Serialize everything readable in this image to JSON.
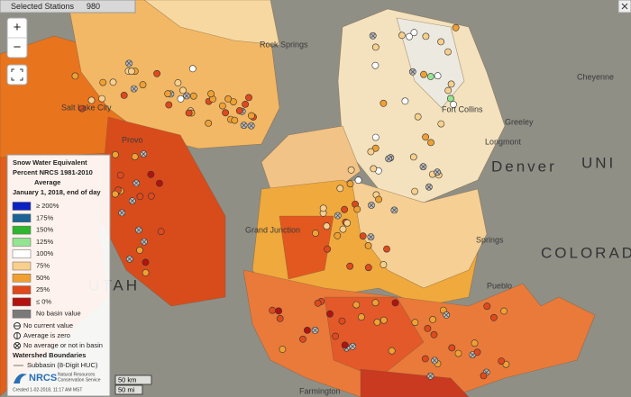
{
  "toolbar": {
    "label": "Selected Stations",
    "count": "980"
  },
  "controls": {
    "zoom_in": "+",
    "zoom_out": "−"
  },
  "legend": {
    "title": [
      "Snow Water Equivalent",
      "Percent NRCS 1981-2010",
      "Average",
      "January 1, 2018, end of day"
    ],
    "items": [
      {
        "label": "≥ 200%",
        "color": "#0b22c0"
      },
      {
        "label": "175%",
        "color": "#1d6394"
      },
      {
        "label": "150%",
        "color": "#2fb52f"
      },
      {
        "label": "125%",
        "color": "#93e58f"
      },
      {
        "label": "100%",
        "color": "#ffffff"
      },
      {
        "label": "75%",
        "color": "#f8cf8c"
      },
      {
        "label": "50%",
        "color": "#f0a032"
      },
      {
        "label": "25%",
        "color": "#e0491c"
      },
      {
        "label": "≤ 0%",
        "color": "#b3130f"
      },
      {
        "label": "No basin value",
        "color": "#7a7a7a"
      }
    ],
    "symbols": [
      "No current value",
      "Average is zero",
      "No average or not in basin"
    ],
    "boundaries_title": "Watershed Boundaries",
    "boundary": "Subbasin (8-Digit HUC)",
    "logo": "NRCS",
    "agency": [
      "Natural Resources",
      "Conservation Service"
    ],
    "created": "Created 1-02-2018, 11:17 AM MST"
  },
  "scale": [
    "50 km",
    "50 mi"
  ],
  "places": [
    {
      "label": "Rock Springs"
    },
    {
      "label": "Cheyenne"
    },
    {
      "label": "Salt Lake City"
    },
    {
      "label": "Fort Collins"
    },
    {
      "label": "Greeley"
    },
    {
      "label": "Longmont"
    },
    {
      "label": "Denver"
    },
    {
      "label": "UNI"
    },
    {
      "label": "Grand Junction"
    },
    {
      "label": "COLORADO"
    },
    {
      "label": "Pueblo"
    },
    {
      "label": "Farmington"
    },
    {
      "label": "Provo"
    },
    {
      "label": "UTAH"
    },
    {
      "label": "Springs"
    }
  ]
}
